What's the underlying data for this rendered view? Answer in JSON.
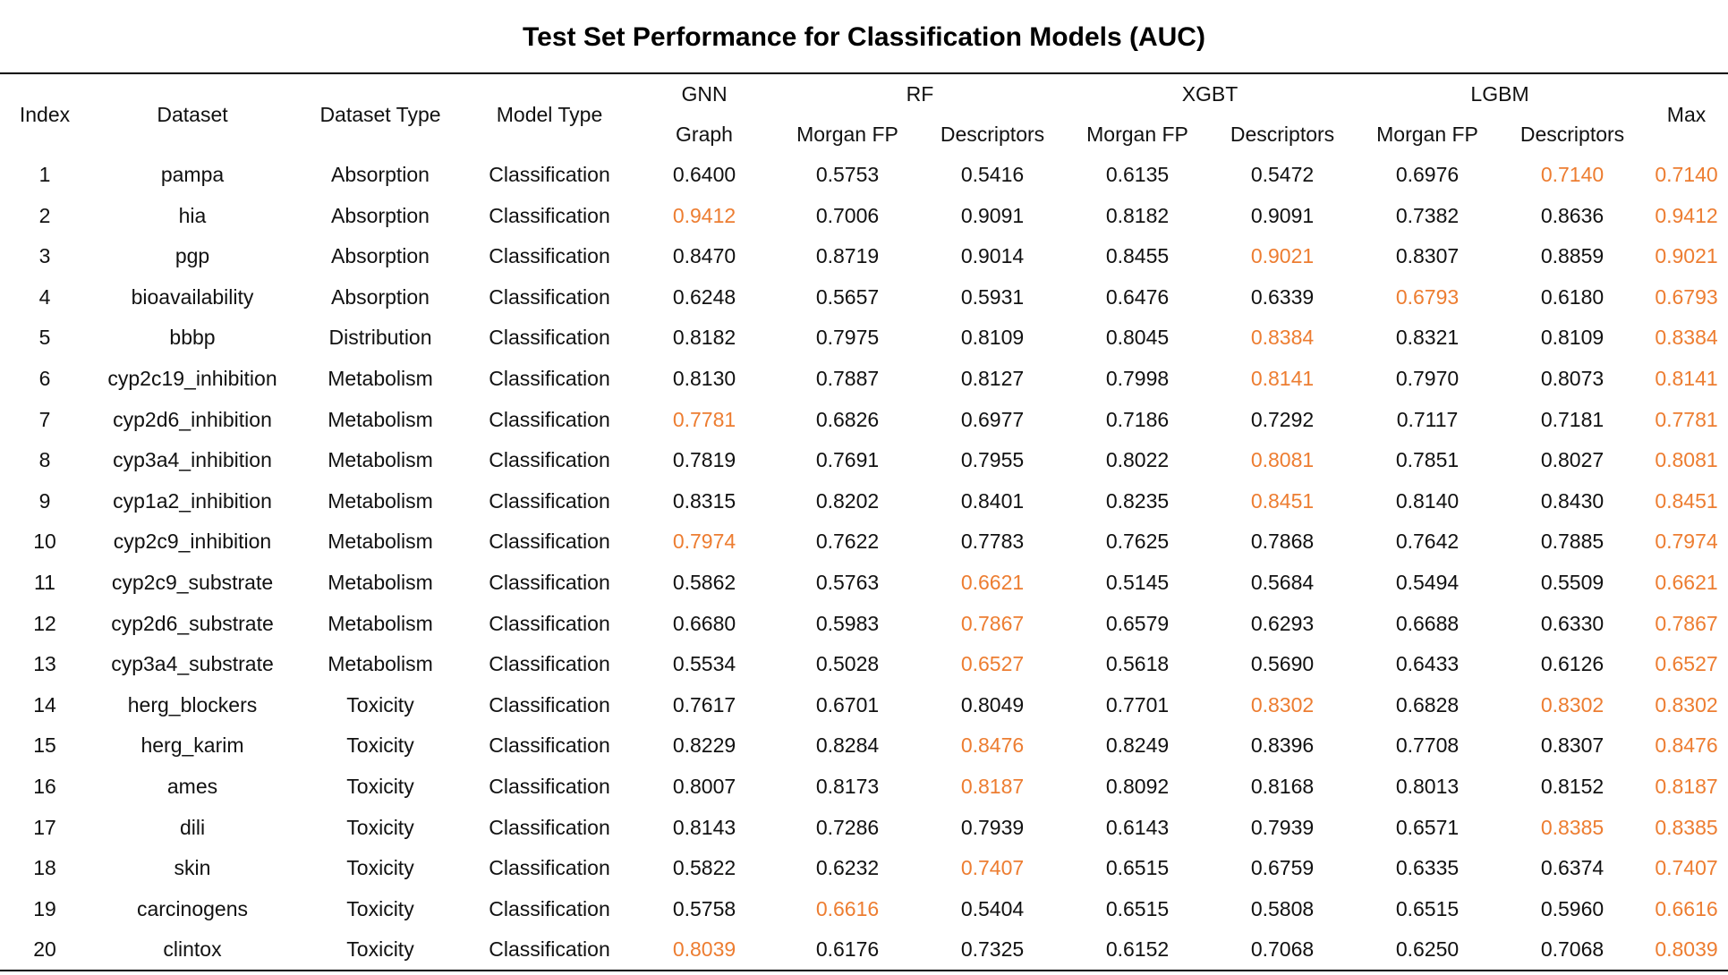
{
  "title": "Test Set Performance for Classification Models (AUC)",
  "headers": {
    "index": "Index",
    "dataset": "Dataset",
    "dataset_type": "Dataset Type",
    "model_type": "Model Type",
    "gnn": "GNN",
    "rf": "RF",
    "xgbt": "XGBT",
    "lgbm": "LGBM",
    "max": "Max",
    "graph": "Graph",
    "rf_morgan": "Morgan FP",
    "rf_desc": "Descriptors",
    "xgbt_morgan": "Morgan FP",
    "xgbt_desc": "Descriptors",
    "lgbm_morgan": "Morgan FP",
    "lgbm_desc": "Descriptors"
  },
  "highlight_color": "#ed7d31",
  "rows": [
    {
      "index": "1",
      "dataset": "pampa",
      "type": "Absorption",
      "model": "Classification",
      "values": [
        "0.6400",
        "0.5753",
        "0.5416",
        "0.6135",
        "0.5472",
        "0.6976",
        "0.7140"
      ],
      "max": "0.7140",
      "best": [
        6
      ]
    },
    {
      "index": "2",
      "dataset": "hia",
      "type": "Absorption",
      "model": "Classification",
      "values": [
        "0.9412",
        "0.7006",
        "0.9091",
        "0.8182",
        "0.9091",
        "0.7382",
        "0.8636"
      ],
      "max": "0.9412",
      "best": [
        0
      ]
    },
    {
      "index": "3",
      "dataset": "pgp",
      "type": "Absorption",
      "model": "Classification",
      "values": [
        "0.8470",
        "0.8719",
        "0.9014",
        "0.8455",
        "0.9021",
        "0.8307",
        "0.8859"
      ],
      "max": "0.9021",
      "best": [
        4
      ]
    },
    {
      "index": "4",
      "dataset": "bioavailability",
      "type": "Absorption",
      "model": "Classification",
      "values": [
        "0.6248",
        "0.5657",
        "0.5931",
        "0.6476",
        "0.6339",
        "0.6793",
        "0.6180"
      ],
      "max": "0.6793",
      "best": [
        5
      ]
    },
    {
      "index": "5",
      "dataset": "bbbp",
      "type": "Distribution",
      "model": "Classification",
      "values": [
        "0.8182",
        "0.7975",
        "0.8109",
        "0.8045",
        "0.8384",
        "0.8321",
        "0.8109"
      ],
      "max": "0.8384",
      "best": [
        4
      ]
    },
    {
      "index": "6",
      "dataset": "cyp2c19_inhibition",
      "type": "Metabolism",
      "model": "Classification",
      "values": [
        "0.8130",
        "0.7887",
        "0.8127",
        "0.7998",
        "0.8141",
        "0.7970",
        "0.8073"
      ],
      "max": "0.8141",
      "best": [
        4
      ]
    },
    {
      "index": "7",
      "dataset": "cyp2d6_inhibition",
      "type": "Metabolism",
      "model": "Classification",
      "values": [
        "0.7781",
        "0.6826",
        "0.6977",
        "0.7186",
        "0.7292",
        "0.7117",
        "0.7181"
      ],
      "max": "0.7781",
      "best": [
        0
      ]
    },
    {
      "index": "8",
      "dataset": "cyp3a4_inhibition",
      "type": "Metabolism",
      "model": "Classification",
      "values": [
        "0.7819",
        "0.7691",
        "0.7955",
        "0.8022",
        "0.8081",
        "0.7851",
        "0.8027"
      ],
      "max": "0.8081",
      "best": [
        4
      ]
    },
    {
      "index": "9",
      "dataset": "cyp1a2_inhibition",
      "type": "Metabolism",
      "model": "Classification",
      "values": [
        "0.8315",
        "0.8202",
        "0.8401",
        "0.8235",
        "0.8451",
        "0.8140",
        "0.8430"
      ],
      "max": "0.8451",
      "best": [
        4
      ]
    },
    {
      "index": "10",
      "dataset": "cyp2c9_inhibition",
      "type": "Metabolism",
      "model": "Classification",
      "values": [
        "0.7974",
        "0.7622",
        "0.7783",
        "0.7625",
        "0.7868",
        "0.7642",
        "0.7885"
      ],
      "max": "0.7974",
      "best": [
        0
      ]
    },
    {
      "index": "11",
      "dataset": "cyp2c9_substrate",
      "type": "Metabolism",
      "model": "Classification",
      "values": [
        "0.5862",
        "0.5763",
        "0.6621",
        "0.5145",
        "0.5684",
        "0.5494",
        "0.5509"
      ],
      "max": "0.6621",
      "best": [
        2
      ]
    },
    {
      "index": "12",
      "dataset": "cyp2d6_substrate",
      "type": "Metabolism",
      "model": "Classification",
      "values": [
        "0.6680",
        "0.5983",
        "0.7867",
        "0.6579",
        "0.6293",
        "0.6688",
        "0.6330"
      ],
      "max": "0.7867",
      "best": [
        2
      ]
    },
    {
      "index": "13",
      "dataset": "cyp3a4_substrate",
      "type": "Metabolism",
      "model": "Classification",
      "values": [
        "0.5534",
        "0.5028",
        "0.6527",
        "0.5618",
        "0.5690",
        "0.6433",
        "0.6126"
      ],
      "max": "0.6527",
      "best": [
        2
      ]
    },
    {
      "index": "14",
      "dataset": "herg_blockers",
      "type": "Toxicity",
      "model": "Classification",
      "values": [
        "0.7617",
        "0.6701",
        "0.8049",
        "0.7701",
        "0.8302",
        "0.6828",
        "0.8302"
      ],
      "max": "0.8302",
      "best": [
        4,
        6
      ]
    },
    {
      "index": "15",
      "dataset": "herg_karim",
      "type": "Toxicity",
      "model": "Classification",
      "values": [
        "0.8229",
        "0.8284",
        "0.8476",
        "0.8249",
        "0.8396",
        "0.7708",
        "0.8307"
      ],
      "max": "0.8476",
      "best": [
        2
      ]
    },
    {
      "index": "16",
      "dataset": "ames",
      "type": "Toxicity",
      "model": "Classification",
      "values": [
        "0.8007",
        "0.8173",
        "0.8187",
        "0.8092",
        "0.8168",
        "0.8013",
        "0.8152"
      ],
      "max": "0.8187",
      "best": [
        2
      ]
    },
    {
      "index": "17",
      "dataset": "dili",
      "type": "Toxicity",
      "model": "Classification",
      "values": [
        "0.8143",
        "0.7286",
        "0.7939",
        "0.6143",
        "0.7939",
        "0.6571",
        "0.8385"
      ],
      "max": "0.8385",
      "best": [
        6
      ]
    },
    {
      "index": "18",
      "dataset": "skin",
      "type": "Toxicity",
      "model": "Classification",
      "values": [
        "0.5822",
        "0.6232",
        "0.7407",
        "0.6515",
        "0.6759",
        "0.6335",
        "0.6374"
      ],
      "max": "0.7407",
      "best": [
        2
      ]
    },
    {
      "index": "19",
      "dataset": "carcinogens",
      "type": "Toxicity",
      "model": "Classification",
      "values": [
        "0.5758",
        "0.6616",
        "0.5404",
        "0.6515",
        "0.5808",
        "0.6515",
        "0.5960"
      ],
      "max": "0.6616",
      "best": [
        1
      ]
    },
    {
      "index": "20",
      "dataset": "clintox",
      "type": "Toxicity",
      "model": "Classification",
      "values": [
        "0.8039",
        "0.6176",
        "0.7325",
        "0.6152",
        "0.7068",
        "0.6250",
        "0.7068"
      ],
      "max": "0.8039",
      "best": [
        0
      ]
    }
  ]
}
